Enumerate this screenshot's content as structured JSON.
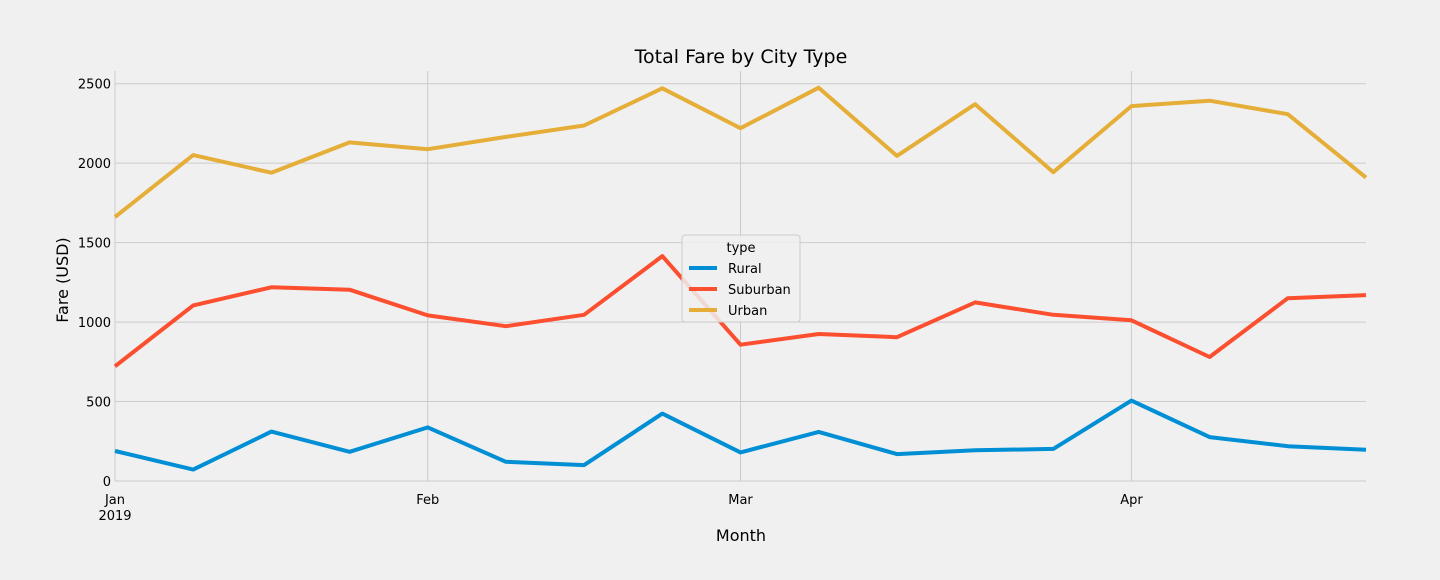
{
  "chart_data": {
    "type": "line",
    "title": "Total Fare by City Type",
    "xlabel": "Month",
    "ylabel": "Fare (USD)",
    "x": [
      "2019-01-06",
      "2019-01-13",
      "2019-01-20",
      "2019-01-27",
      "2019-02-03",
      "2019-02-10",
      "2019-02-17",
      "2019-02-24",
      "2019-03-03",
      "2019-03-10",
      "2019-03-17",
      "2019-03-24",
      "2019-03-31",
      "2019-04-07",
      "2019-04-14",
      "2019-04-21",
      "2019-04-28"
    ],
    "x_ticks": [
      {
        "label": "Jan",
        "sublabel": "2019",
        "index": 0
      },
      {
        "label": "Feb",
        "sublabel": "",
        "index": 4
      },
      {
        "label": "Mar",
        "sublabel": "",
        "index": 8
      },
      {
        "label": "Apr",
        "sublabel": "",
        "index": 13
      }
    ],
    "ylim": [
      0,
      2580
    ],
    "y_ticks": [
      0,
      500,
      1000,
      1500,
      2000,
      2500
    ],
    "grid": true,
    "legend": {
      "title": "type",
      "placement": "center"
    },
    "series": [
      {
        "name": "Rural",
        "color": "#008fd5",
        "values": [
          189,
          72,
          311,
          184,
          337,
          121,
          100,
          424,
          180,
          309,
          169,
          193,
          202,
          506,
          276,
          219,
          197
        ]
      },
      {
        "name": "Suburban",
        "color": "#fc4f30",
        "values": [
          722,
          1105,
          1219,
          1204,
          1042,
          974,
          1046,
          1415,
          858,
          925,
          905,
          1124,
          1046,
          1011,
          780,
          1150,
          1170
        ]
      },
      {
        "name": "Urban",
        "color": "#e5ae38",
        "values": [
          1661,
          2051,
          1940,
          2131,
          2088,
          2165,
          2237,
          2471,
          2220,
          2475,
          2046,
          2371,
          1943,
          2359,
          2393,
          2308,
          1909
        ]
      }
    ]
  }
}
